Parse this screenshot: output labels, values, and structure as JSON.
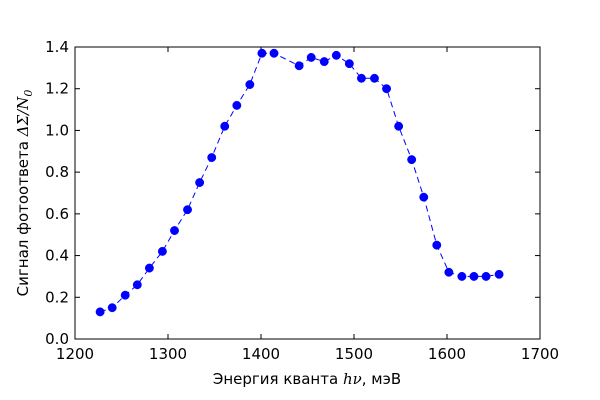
{
  "chart_data": {
    "type": "line",
    "title": "",
    "xlabel_prefix": "Энергия кванта ",
    "xlabel_math": "hν",
    "xlabel_suffix": ", мэВ",
    "ylabel_prefix": "Сигнал фотоответа ",
    "ylabel_math": "ΔΣ/N",
    "ylabel_sub": "0",
    "xlim": [
      1200,
      1700
    ],
    "ylim": [
      0.0,
      1.4
    ],
    "x_ticks": [
      "1200",
      "1300",
      "1400",
      "1500",
      "1600",
      "1700"
    ],
    "y_ticks": [
      "0.0",
      "0.2",
      "0.4",
      "0.6",
      "0.8",
      "1.0",
      "1.2",
      "1.4"
    ],
    "grid": false,
    "series": [
      {
        "color": "#0000ff",
        "marker": "circle",
        "linestyle": "dashed",
        "x": [
          1227,
          1240,
          1254,
          1267,
          1280,
          1294,
          1307,
          1321,
          1334,
          1347,
          1361,
          1374,
          1388,
          1401,
          1414,
          1441,
          1454,
          1468,
          1481,
          1495,
          1508,
          1522,
          1535,
          1548,
          1562,
          1575,
          1589,
          1602,
          1616,
          1629,
          1642,
          1656
        ],
        "y": [
          0.13,
          0.15,
          0.21,
          0.26,
          0.34,
          0.42,
          0.52,
          0.62,
          0.75,
          0.87,
          1.02,
          1.12,
          1.22,
          1.37,
          1.37,
          1.31,
          1.35,
          1.33,
          1.36,
          1.32,
          1.25,
          1.25,
          1.2,
          1.02,
          0.86,
          0.68,
          0.45,
          0.32,
          0.3,
          0.3,
          0.3,
          0.31
        ]
      }
    ]
  }
}
